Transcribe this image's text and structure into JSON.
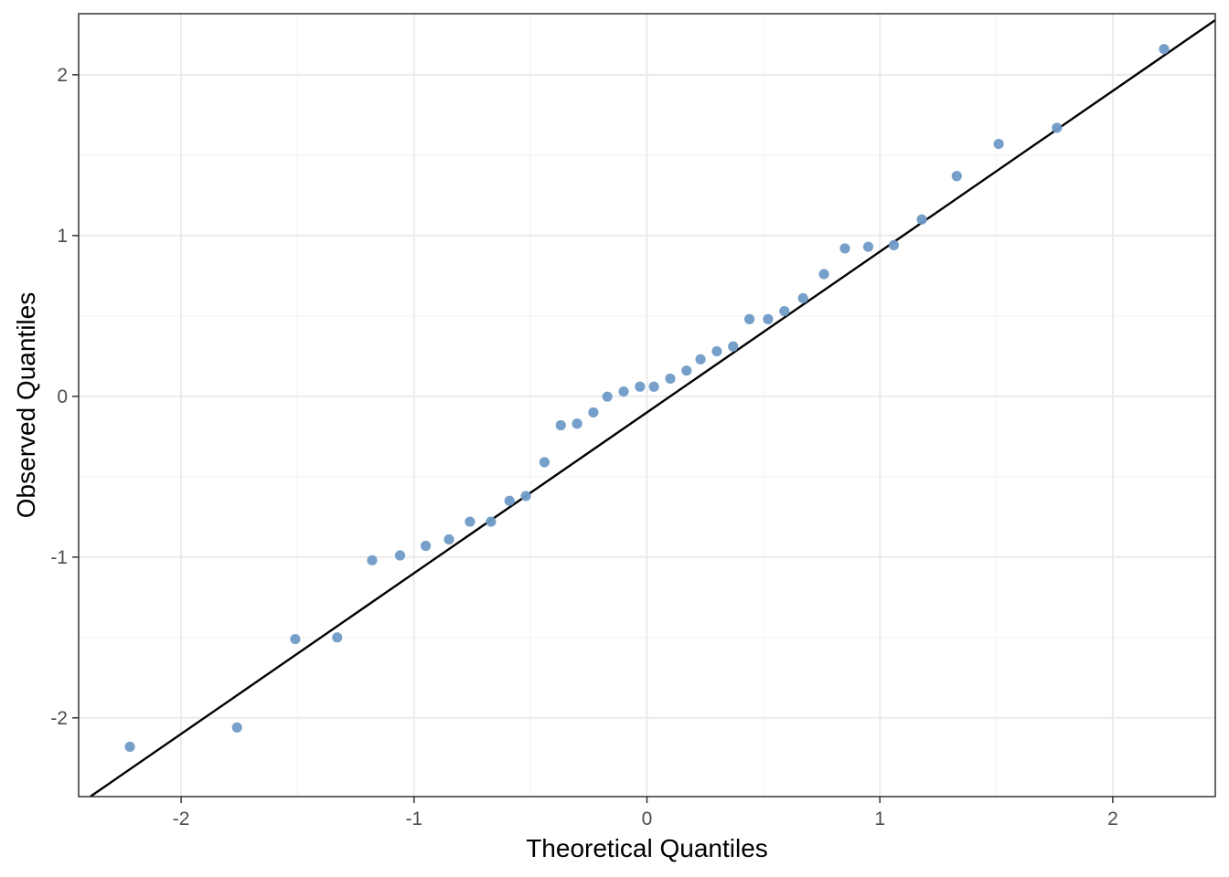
{
  "chart_data": {
    "type": "scatter",
    "title": "",
    "xlabel": "Theoretical Quantiles",
    "ylabel": "Observed Quantiles",
    "xlim": [
      -2.44,
      2.44
    ],
    "ylim": [
      -2.49,
      2.38
    ],
    "x_ticks": [
      -2,
      -1,
      0,
      1,
      2
    ],
    "y_ticks": [
      -2,
      -1,
      0,
      1,
      2
    ],
    "x_tick_labels": [
      "-2",
      "-1",
      "0",
      "1",
      "2"
    ],
    "y_tick_labels": [
      "-2",
      "-1",
      "0",
      "1",
      "2"
    ],
    "grid": true,
    "legend": "none",
    "colors": {
      "points": "#6f9bc6",
      "reference_line": "#000000",
      "grid_major": "#ebebeb",
      "grid_minor": "#f4f4f4",
      "panel_border": "#333333"
    },
    "reference_line": {
      "slope": 1.0,
      "intercept": -0.1
    },
    "series": [
      {
        "x": [
          -2.22,
          -1.76,
          -1.51,
          -1.33,
          -1.18,
          -1.06,
          -0.95,
          -0.85,
          -0.76,
          -0.67,
          -0.59,
          -0.52,
          -0.44,
          -0.37,
          -0.3,
          -0.23,
          -0.17,
          -0.1,
          -0.03,
          0.03,
          0.1,
          0.17,
          0.23,
          0.3,
          0.37,
          0.44,
          0.52,
          0.59,
          0.67,
          0.76,
          0.85,
          0.95,
          1.06,
          1.18,
          1.33,
          1.51,
          1.76,
          2.22
        ],
        "y": [
          -2.18,
          -2.06,
          -1.51,
          -1.5,
          -1.02,
          -0.99,
          -0.93,
          -0.89,
          -0.78,
          -0.78,
          -0.65,
          -0.62,
          -0.41,
          -0.18,
          -0.17,
          -0.1,
          -0.002,
          0.03,
          0.06,
          0.06,
          0.11,
          0.16,
          0.23,
          0.28,
          0.31,
          0.48,
          0.48,
          0.53,
          0.61,
          0.76,
          0.92,
          0.93,
          0.94,
          1.1,
          1.37,
          1.57,
          1.67,
          2.16
        ]
      }
    ]
  }
}
